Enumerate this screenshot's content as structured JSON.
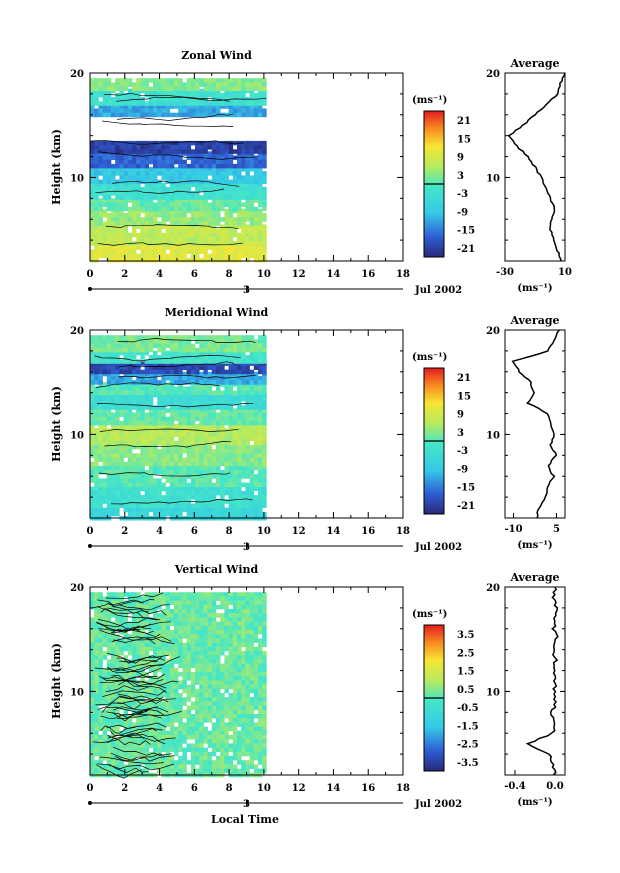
{
  "chart_data": [
    {
      "type": "heatmap",
      "title": "Zonal Wind",
      "ylabel": "Height (km)",
      "y_ticks": [
        "20",
        "10"
      ],
      "ylim": [
        2,
        20
      ],
      "x_ticks": [
        "0",
        "2",
        "4",
        "6",
        "8",
        "10",
        "12",
        "14",
        "16",
        "18"
      ],
      "xlim": [
        0,
        18
      ],
      "date_tick": "3",
      "date_label": "Jul 2002",
      "data_extent_hours": [
        0,
        10
      ],
      "colorbar": {
        "unit": "(ms⁻¹)",
        "tick_labels": [
          "21",
          "15",
          "9",
          "3",
          "-3",
          "-9",
          "-15",
          "-21"
        ],
        "range": [
          -24,
          24
        ]
      },
      "bands": [
        {
          "y_from": 2,
          "y_to": 3.5,
          "value": 10
        },
        {
          "y_from": 3.5,
          "y_to": 5.5,
          "value": 7
        },
        {
          "y_from": 5.5,
          "y_to": 7,
          "value": 4
        },
        {
          "y_from": 7,
          "y_to": 8,
          "value": 1
        },
        {
          "y_from": 8,
          "y_to": 9.5,
          "value": -3
        },
        {
          "y_from": 9.5,
          "y_to": 11,
          "value": -9
        },
        {
          "y_from": 11,
          "y_to": 12.5,
          "value": -17
        },
        {
          "y_from": 12.5,
          "y_to": 13.5,
          "value": -21
        },
        {
          "y_from": 13.5,
          "y_to": 16,
          "value": null
        },
        {
          "y_from": 16,
          "y_to": 17,
          "value": -12
        },
        {
          "y_from": 17,
          "y_to": 18.5,
          "value": -3
        },
        {
          "y_from": 18.5,
          "y_to": 19.5,
          "value": 3
        }
      ],
      "average": {
        "title": "Average",
        "x_ticks": [
          "-30",
          "10"
        ],
        "xlim": [
          -30,
          10
        ],
        "xlabel": "(ms⁻¹)",
        "y_ticks": [
          "20",
          "10"
        ],
        "height_km": [
          2,
          3,
          4,
          5,
          6,
          7,
          8,
          9,
          10,
          11,
          12,
          13,
          14,
          15,
          16,
          17,
          18,
          19,
          20
        ],
        "values": [
          8,
          5,
          3,
          0,
          1,
          3,
          0,
          -3,
          -6,
          -10,
          -15,
          -22,
          -27,
          -18,
          -10,
          -2,
          5,
          7,
          10
        ]
      }
    },
    {
      "type": "heatmap",
      "title": "Meridional Wind",
      "ylabel": "Height (km)",
      "y_ticks": [
        "20",
        "10"
      ],
      "ylim": [
        2,
        20
      ],
      "x_ticks": [
        "0",
        "2",
        "4",
        "6",
        "8",
        "10",
        "12",
        "14",
        "16",
        "18"
      ],
      "xlim": [
        0,
        18
      ],
      "date_tick": "3",
      "date_label": "Jul 2002",
      "data_extent_hours": [
        0,
        10
      ],
      "colorbar": {
        "unit": "(ms⁻¹)",
        "tick_labels": [
          "21",
          "15",
          "9",
          "3",
          "-3",
          "-9",
          "-15",
          "-21"
        ],
        "range": [
          -24,
          24
        ]
      },
      "bands": [
        {
          "y_from": 2,
          "y_to": 3,
          "value": -6
        },
        {
          "y_from": 3,
          "y_to": 5,
          "value": -3
        },
        {
          "y_from": 5,
          "y_to": 7,
          "value": 0
        },
        {
          "y_from": 7,
          "y_to": 9,
          "value": 3
        },
        {
          "y_from": 9,
          "y_to": 11,
          "value": 6
        },
        {
          "y_from": 11,
          "y_to": 12.5,
          "value": 1
        },
        {
          "y_from": 12.5,
          "y_to": 14,
          "value": -4
        },
        {
          "y_from": 14,
          "y_to": 15,
          "value": 0
        },
        {
          "y_from": 15,
          "y_to": 16,
          "value": -12
        },
        {
          "y_from": 16,
          "y_to": 17,
          "value": -20
        },
        {
          "y_from": 17,
          "y_to": 18,
          "value": -2
        },
        {
          "y_from": 18,
          "y_to": 19.5,
          "value": 2
        }
      ],
      "average": {
        "title": "Average",
        "x_ticks": [
          "-10",
          "5"
        ],
        "xlim": [
          -13,
          8
        ],
        "xlabel": "(ms⁻¹)",
        "y_ticks": [
          "20",
          "10"
        ],
        "height_km": [
          2,
          3,
          4,
          5,
          6,
          7,
          8,
          9,
          10,
          11,
          12,
          13,
          14,
          15,
          16,
          17,
          18,
          19,
          20
        ],
        "values": [
          -2,
          -1,
          1,
          2,
          4,
          2,
          5,
          3,
          4,
          3,
          2,
          -5,
          -3,
          -4,
          -8,
          -10,
          2,
          4,
          6
        ]
      }
    },
    {
      "type": "heatmap",
      "title": "Vertical Wind",
      "ylabel": "Height (km)",
      "xlabel": "Local Time",
      "y_ticks": [
        "20",
        "10"
      ],
      "ylim": [
        2,
        20
      ],
      "x_ticks": [
        "0",
        "2",
        "4",
        "6",
        "8",
        "10",
        "12",
        "14",
        "16",
        "18"
      ],
      "xlim": [
        0,
        18
      ],
      "date_tick": "3",
      "date_label": "Jul 2002",
      "data_extent_hours": [
        0,
        10
      ],
      "colorbar": {
        "unit": "(ms⁻¹)",
        "tick_labels": [
          "3.5",
          "2.5",
          "1.5",
          "0.5",
          "-0.5",
          "-1.5",
          "-2.5",
          "-3.5"
        ],
        "range": [
          -4,
          4
        ]
      },
      "bands": [
        {
          "y_from": 2,
          "y_to": 19.5,
          "value": 0.2
        }
      ],
      "average": {
        "title": "Average",
        "x_ticks": [
          "-0.4",
          "0.0"
        ],
        "xlim": [
          -0.5,
          0.1
        ],
        "xlabel": "(ms⁻¹)",
        "y_ticks": [
          "20",
          "10"
        ],
        "height_km": [
          2,
          3,
          4,
          5,
          6,
          7,
          8,
          9,
          10,
          11,
          12,
          13,
          14,
          15,
          16,
          17,
          18,
          19,
          20
        ],
        "values": [
          0.0,
          -0.02,
          -0.05,
          -0.28,
          -0.02,
          0.0,
          -0.03,
          0.01,
          -0.01,
          0.0,
          -0.02,
          0.01,
          -0.02,
          0.02,
          -0.01,
          0.0,
          0.01,
          -0.01,
          0.0
        ]
      }
    }
  ]
}
